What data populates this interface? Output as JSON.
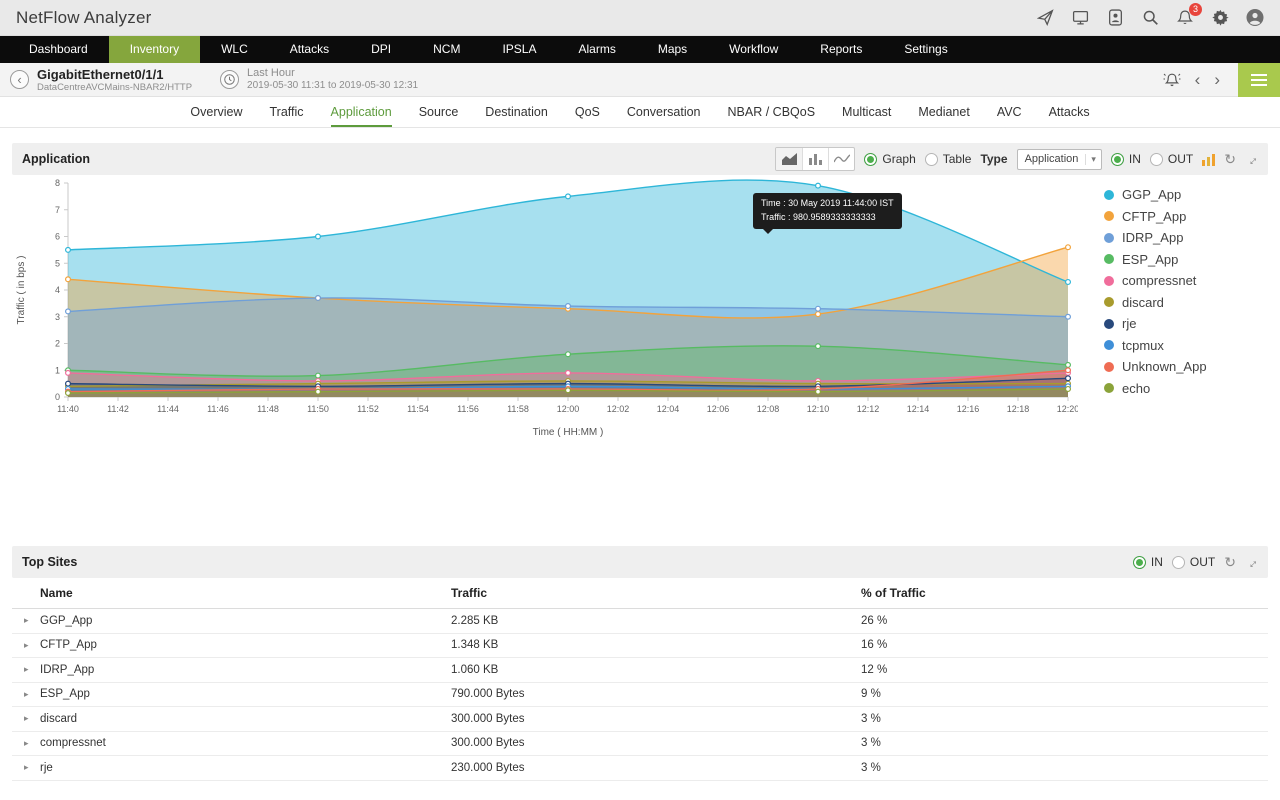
{
  "app": {
    "title": "NetFlow Analyzer"
  },
  "topbar": {
    "notification_count": "3"
  },
  "nav": {
    "items": [
      {
        "label": "Dashboard",
        "active": false
      },
      {
        "label": "Inventory",
        "active": true
      },
      {
        "label": "WLC",
        "active": false
      },
      {
        "label": "Attacks",
        "active": false
      },
      {
        "label": "DPI",
        "active": false
      },
      {
        "label": "NCM",
        "active": false
      },
      {
        "label": "IPSLA",
        "active": false
      },
      {
        "label": "Alarms",
        "active": false
      },
      {
        "label": "Maps",
        "active": false
      },
      {
        "label": "Workflow",
        "active": false
      },
      {
        "label": "Reports",
        "active": false
      },
      {
        "label": "Settings",
        "active": false
      }
    ]
  },
  "subheader": {
    "device_name": "GigabitEthernet0/1/1",
    "device_path": "DataCentreAVCMains-NBAR2/HTTP",
    "time_range_label": "Last Hour",
    "time_range_value": "2019-05-30 11:31 to 2019-05-30 12:31"
  },
  "tabs": {
    "active": "Application",
    "items": [
      "Overview",
      "Traffic",
      "Application",
      "Source",
      "Destination",
      "QoS",
      "Conversation",
      "NBAR / CBQoS",
      "Multicast",
      "Medianet",
      "AVC",
      "Attacks"
    ]
  },
  "application_panel": {
    "title": "Application",
    "graph_label": "Graph",
    "table_label": "Table",
    "type_label": "Type",
    "type_value": "Application",
    "in_label": "IN",
    "out_label": "OUT"
  },
  "tooltip": {
    "line1": "Time : 30 May 2019 11:44:00 IST",
    "line2": "Traffic : 980.9589333333333"
  },
  "chart_data": {
    "type": "area",
    "title": "Application traffic",
    "xlabel": "Time ( HH:MM )",
    "ylabel": "Traffic ( in bps )",
    "ylim": [
      0,
      8
    ],
    "grid": false,
    "legend_position": "right",
    "x_ticks": [
      "11:40",
      "11:42",
      "11:44",
      "11:46",
      "11:48",
      "11:50",
      "11:52",
      "11:54",
      "11:56",
      "11:58",
      "12:00",
      "12:02",
      "12:04",
      "12:06",
      "12:08",
      "12:10",
      "12:12",
      "12:14",
      "12:16",
      "12:18",
      "12:20"
    ],
    "x": [
      "11:40",
      "11:50",
      "12:00",
      "12:10",
      "12:20"
    ],
    "series": [
      {
        "name": "GGP_App",
        "color": "#2eb6d8",
        "values": [
          5.5,
          6.0,
          7.5,
          7.9,
          4.3
        ]
      },
      {
        "name": "CFTP_App",
        "color": "#f2a33c",
        "values": [
          4.4,
          3.7,
          3.3,
          3.1,
          5.6
        ]
      },
      {
        "name": "IDRP_App",
        "color": "#6f9fd8",
        "values": [
          3.2,
          3.7,
          3.4,
          3.3,
          3.0
        ]
      },
      {
        "name": "ESP_App",
        "color": "#57bb63",
        "values": [
          1.0,
          0.8,
          1.6,
          1.9,
          1.2
        ]
      },
      {
        "name": "compressnet",
        "color": "#f06d9b",
        "values": [
          0.9,
          0.6,
          0.9,
          0.6,
          0.9
        ]
      },
      {
        "name": "discard",
        "color": "#a89b2d",
        "values": [
          0.4,
          0.5,
          0.6,
          0.5,
          0.5
        ]
      },
      {
        "name": "rje",
        "color": "#28497c",
        "values": [
          0.5,
          0.4,
          0.5,
          0.4,
          0.7
        ]
      },
      {
        "name": "tcpmux",
        "color": "#3f8fd8",
        "values": [
          0.3,
          0.3,
          0.4,
          0.3,
          0.4
        ]
      },
      {
        "name": "Unknown_App",
        "color": "#ef6c53",
        "values": [
          0.2,
          0.3,
          0.3,
          0.3,
          1.0
        ]
      },
      {
        "name": "echo",
        "color": "#8ba33a",
        "values": [
          0.15,
          0.2,
          0.25,
          0.2,
          0.3
        ]
      }
    ]
  },
  "top_sites": {
    "title": "Top Sites",
    "in_label": "IN",
    "out_label": "OUT",
    "columns": [
      "Name",
      "Traffic",
      "% of Traffic"
    ],
    "rows": [
      {
        "name": "GGP_App",
        "traffic": "2.285 KB",
        "percent": "26 %"
      },
      {
        "name": "CFTP_App",
        "traffic": "1.348 KB",
        "percent": "16 %"
      },
      {
        "name": "IDRP_App",
        "traffic": "1.060 KB",
        "percent": "12 %"
      },
      {
        "name": "ESP_App",
        "traffic": "790.000 Bytes",
        "percent": "9 %"
      },
      {
        "name": "discard",
        "traffic": "300.000 Bytes",
        "percent": "3 %"
      },
      {
        "name": "compressnet",
        "traffic": "300.000 Bytes",
        "percent": "3 %"
      },
      {
        "name": "rje",
        "traffic": "230.000 Bytes",
        "percent": "3 %"
      }
    ]
  }
}
